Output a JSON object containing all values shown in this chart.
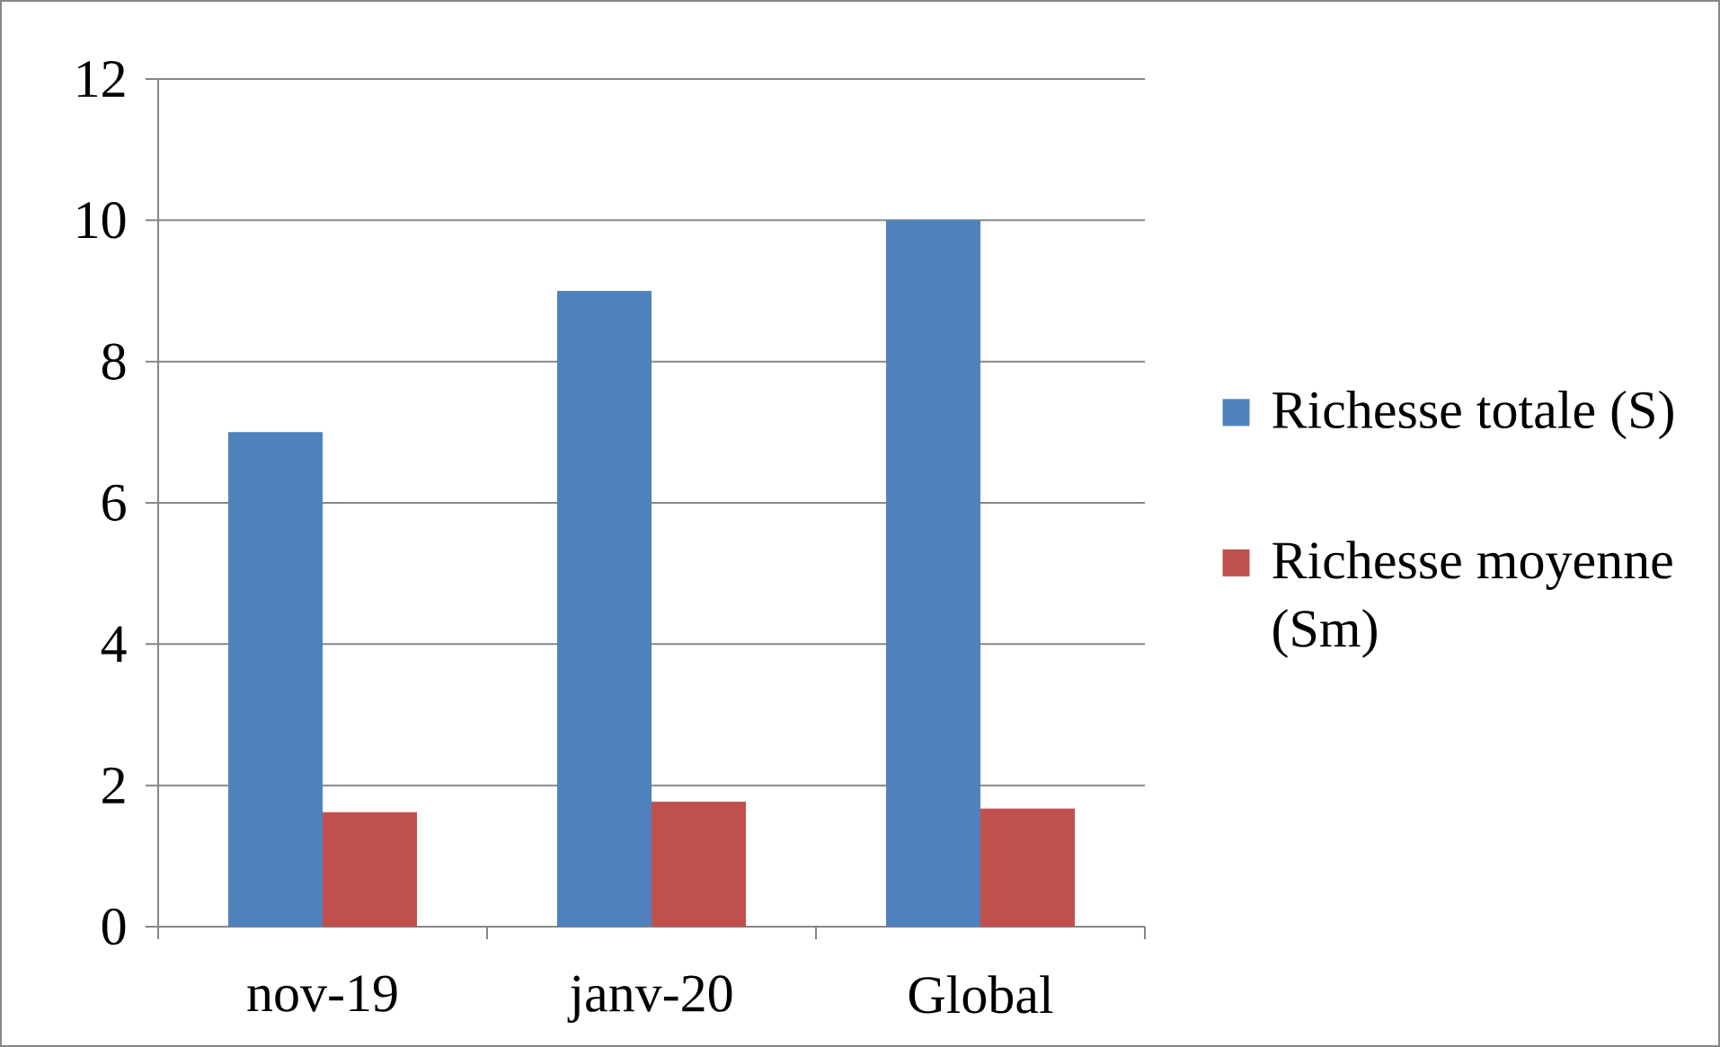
{
  "chart_data": {
    "type": "bar",
    "categories": [
      "nov-19",
      "janv-20",
      "Global"
    ],
    "series": [
      {
        "name": "Richesse totale (S)",
        "color": "#4f81bd",
        "values": [
          7,
          9,
          10
        ]
      },
      {
        "name": "Richesse moyenne (Sm)",
        "color": "#c0504d",
        "values": [
          1.62,
          1.77,
          1.67
        ]
      }
    ],
    "ylim": [
      0,
      12
    ],
    "yticks": [
      0,
      2,
      4,
      6,
      8,
      10,
      12
    ],
    "grid": "y",
    "legend": "right"
  }
}
